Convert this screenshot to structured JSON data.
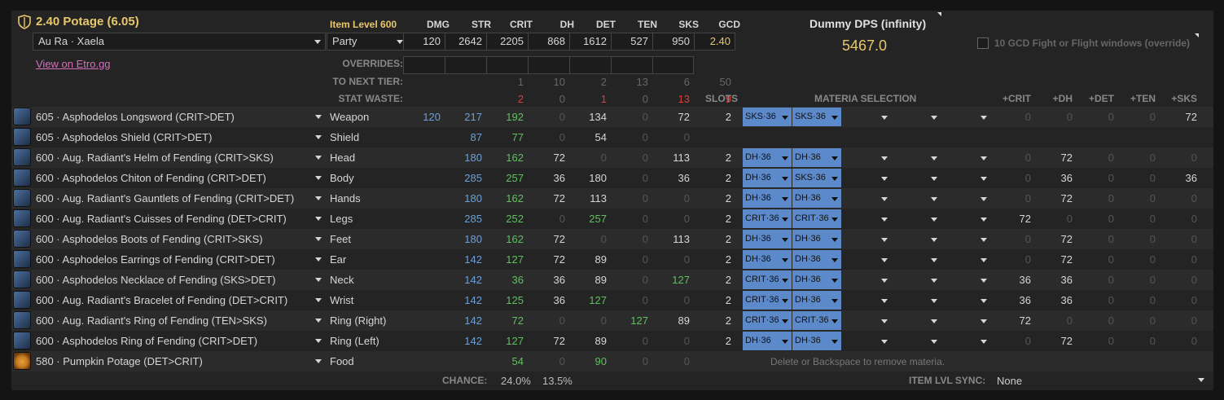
{
  "header": {
    "title": "2.40 Potage (6.05)",
    "race": "Au Ra · Xaela",
    "etro_link": "View on Etro.gg",
    "item_level": "Item Level 600",
    "party": "Party",
    "stat_headers": [
      "DMG",
      "STR",
      "CRIT",
      "DH",
      "DET",
      "TEN",
      "SKS",
      "GCD"
    ],
    "stat_values": [
      "120",
      "2642",
      "2205",
      "868",
      "1612",
      "527",
      "950",
      "2.40"
    ],
    "overrides_label": "OVERRIDES:",
    "next_tier_label": "TO NEXT TIER:",
    "next_tier": [
      "1",
      "10",
      "2",
      "13",
      "6",
      "50"
    ],
    "waste_label": "STAT WASTE:",
    "waste": [
      "2",
      "0",
      "1",
      "0",
      "13",
      "9"
    ],
    "slots_label": "SLOTS",
    "materia_label": "MATERIA SELECTION",
    "sub_headers": [
      "+CRIT",
      "+DH",
      "+DET",
      "+TEN",
      "+SKS"
    ]
  },
  "dps": {
    "title": "Dummy DPS (infinity)",
    "value": "5467.0",
    "checkbox_label": "10 GCD Fight or Flight windows (override)"
  },
  "gear": [
    {
      "name": "605 · Asphodelos Longsword (CRIT>DET)",
      "slot": "Weapon",
      "dmg": "120",
      "str": "217",
      "crit": "192",
      "dh": "0",
      "det": "134",
      "ten": "0",
      "sks": "72",
      "slots": "2",
      "materia": [
        "SKS·36",
        "SKS·36",
        "",
        "",
        ""
      ],
      "plus": [
        "0",
        "0",
        "0",
        "0",
        "72"
      ]
    },
    {
      "name": "605 · Asphodelos Shield (CRIT>DET)",
      "slot": "Shield",
      "dmg": "",
      "str": "87",
      "crit": "77",
      "dh": "0",
      "det": "54",
      "ten": "0",
      "sks": "0",
      "slots": "",
      "materia": [],
      "plus": []
    },
    {
      "name": "600 · Aug. Radiant's Helm of Fending (CRIT>SKS)",
      "slot": "Head",
      "dmg": "",
      "str": "180",
      "crit": "162",
      "dh": "72",
      "det": "0",
      "ten": "0",
      "sks": "113",
      "slots": "2",
      "materia": [
        "DH·36",
        "DH·36"
      ],
      "plus": [
        "0",
        "72",
        "0",
        "0",
        "0"
      ]
    },
    {
      "name": "600 · Asphodelos Chiton of Fending (CRIT>DET)",
      "slot": "Body",
      "dmg": "",
      "str": "285",
      "crit": "257",
      "dh": "36",
      "det": "180",
      "ten": "0",
      "sks": "36",
      "slots": "2",
      "materia": [
        "DH·36",
        "SKS·36"
      ],
      "plus": [
        "0",
        "36",
        "0",
        "0",
        "36"
      ]
    },
    {
      "name": "600 · Aug. Radiant's Gauntlets of Fending (CRIT>DET)",
      "slot": "Hands",
      "dmg": "",
      "str": "180",
      "crit": "162",
      "dh": "72",
      "det": "113",
      "ten": "0",
      "sks": "0",
      "slots": "2",
      "materia": [
        "DH·36",
        "DH·36"
      ],
      "plus": [
        "0",
        "72",
        "0",
        "0",
        "0"
      ]
    },
    {
      "name": "600 · Aug. Radiant's Cuisses of Fending (DET>CRIT)",
      "slot": "Legs",
      "dmg": "",
      "str": "285",
      "crit": "252",
      "dh": "0",
      "det": "257",
      "ten": "0",
      "sks": "0",
      "slots": "2",
      "materia": [
        "CRIT·36",
        "CRIT·36"
      ],
      "plus": [
        "72",
        "0",
        "0",
        "0",
        "0"
      ]
    },
    {
      "name": "600 · Asphodelos Boots of Fending (CRIT>SKS)",
      "slot": "Feet",
      "dmg": "",
      "str": "180",
      "crit": "162",
      "dh": "72",
      "det": "0",
      "ten": "0",
      "sks": "113",
      "slots": "2",
      "materia": [
        "DH·36",
        "DH·36"
      ],
      "plus": [
        "0",
        "72",
        "0",
        "0",
        "0"
      ]
    },
    {
      "name": "600 · Asphodelos Earrings of Fending (CRIT>DET)",
      "slot": "Ear",
      "dmg": "",
      "str": "142",
      "crit": "127",
      "dh": "72",
      "det": "89",
      "ten": "0",
      "sks": "0",
      "slots": "2",
      "materia": [
        "DH·36",
        "DH·36"
      ],
      "plus": [
        "0",
        "72",
        "0",
        "0",
        "0"
      ]
    },
    {
      "name": "600 · Asphodelos Necklace of Fending (SKS>DET)",
      "slot": "Neck",
      "dmg": "",
      "str": "142",
      "crit": "36",
      "dh": "36",
      "det": "89",
      "ten": "0",
      "sks": "127",
      "slots": "2",
      "materia": [
        "CRIT·36",
        "DH·36"
      ],
      "plus": [
        "36",
        "36",
        "0",
        "0",
        "0"
      ]
    },
    {
      "name": "600 · Aug. Radiant's Bracelet of Fending (DET>CRIT)",
      "slot": "Wrist",
      "dmg": "",
      "str": "142",
      "crit": "125",
      "dh": "36",
      "det": "127",
      "ten": "0",
      "sks": "0",
      "slots": "2",
      "materia": [
        "CRIT·36",
        "DH·36"
      ],
      "plus": [
        "36",
        "36",
        "0",
        "0",
        "0"
      ]
    },
    {
      "name": "600 · Aug. Radiant's Ring of Fending (TEN>SKS)",
      "slot": "Ring (Right)",
      "dmg": "",
      "str": "142",
      "crit": "72",
      "dh": "0",
      "det": "0",
      "ten": "127",
      "sks": "89",
      "slots": "2",
      "materia": [
        "CRIT·36",
        "CRIT·36"
      ],
      "plus": [
        "72",
        "0",
        "0",
        "0",
        "0"
      ]
    },
    {
      "name": "600 · Asphodelos Ring of Fending (CRIT>DET)",
      "slot": "Ring (Left)",
      "dmg": "",
      "str": "142",
      "crit": "127",
      "dh": "72",
      "det": "89",
      "ten": "0",
      "sks": "0",
      "slots": "2",
      "materia": [
        "DH·36",
        "DH·36"
      ],
      "plus": [
        "0",
        "72",
        "0",
        "0",
        "0"
      ]
    },
    {
      "name": "580 · Pumpkin Potage (DET>CRIT)",
      "slot": "Food",
      "dmg": "",
      "str": "",
      "crit": "54",
      "dh": "0",
      "det": "90",
      "ten": "0",
      "sks": "0",
      "slots": "",
      "materia": [],
      "plus": []
    }
  ],
  "footer": {
    "hint": "Delete or Backspace to remove materia.",
    "chance_label": "CHANCE:",
    "chance_crit": "24.0%",
    "chance_dh": "13.5%",
    "sync_label": "ITEM LVL SYNC:",
    "sync_value": "None"
  },
  "colors": {
    "gold": "#e8c86a",
    "link": "#d56fbd",
    "materia": "#5b89c9",
    "blue": "#6d9fd8",
    "green": "#5fc05f",
    "red": "#e03c3c"
  }
}
